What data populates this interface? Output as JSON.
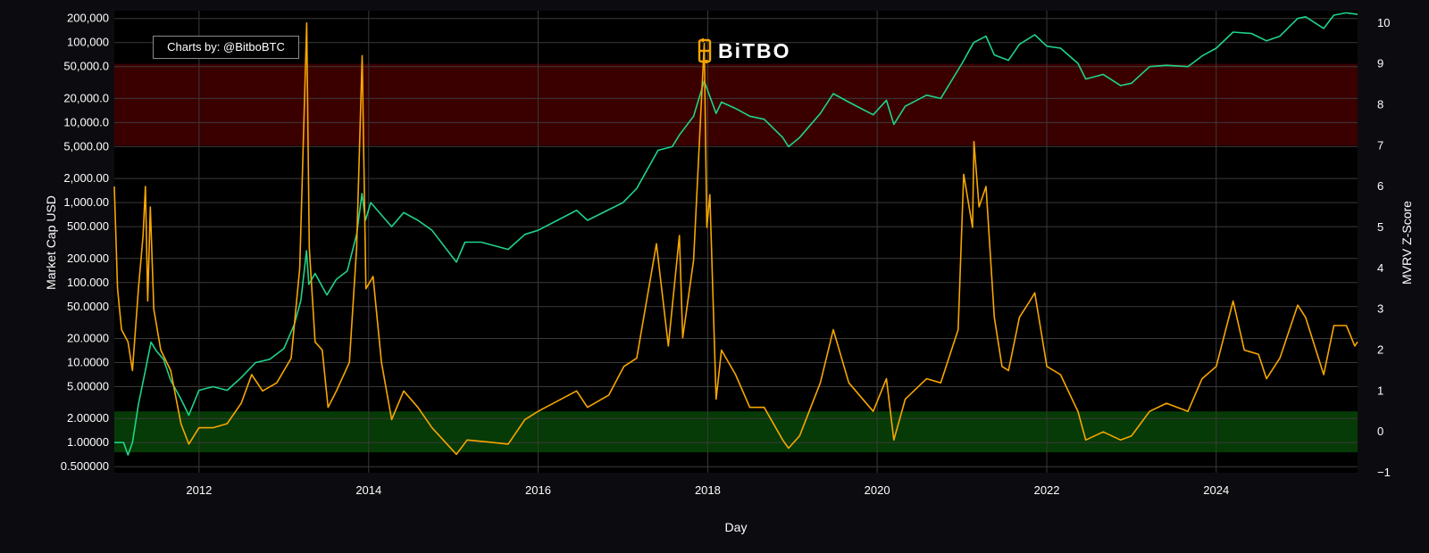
{
  "credit": {
    "label": "Charts by: @BitboBTC"
  },
  "logo": {
    "text": "BiTBO",
    "color": "#f7a600"
  },
  "chart_data": {
    "type": "line",
    "xlabel": "Day",
    "ylabel_left": "Market Cap USD",
    "ylabel_right": "MVRV Z-Score",
    "x_range": [
      "2011-01-01",
      "2025-09-01"
    ],
    "x_ticks": [
      "2012",
      "2014",
      "2016",
      "2018",
      "2020",
      "2022",
      "2024"
    ],
    "y_left": {
      "scale": "log",
      "unit": "billion USD",
      "range": [
        0.42,
        250000
      ],
      "ticks": [
        {
          "v": 200000,
          "label": "200,000"
        },
        {
          "v": 100000,
          "label": "100,000"
        },
        {
          "v": 50000,
          "label": "50,000.0"
        },
        {
          "v": 20000,
          "label": "20,000.0"
        },
        {
          "v": 10000,
          "label": "10,000.0"
        },
        {
          "v": 5000,
          "label": "5,000.00"
        },
        {
          "v": 2000,
          "label": "2,000.00"
        },
        {
          "v": 1000,
          "label": "1,000.00"
        },
        {
          "v": 500,
          "label": "500.000"
        },
        {
          "v": 200,
          "label": "200.000"
        },
        {
          "v": 100,
          "label": "100.000"
        },
        {
          "v": 50,
          "label": "50.0000"
        },
        {
          "v": 20,
          "label": "20.0000"
        },
        {
          "v": 10,
          "label": "10.0000"
        },
        {
          "v": 5,
          "label": "5.00000"
        },
        {
          "v": 2,
          "label": "2.00000"
        },
        {
          "v": 1,
          "label": "1.00000"
        },
        {
          "v": 0.5,
          "label": "0.500000"
        }
      ]
    },
    "y_right": {
      "scale": "linear",
      "range": [
        -1,
        10.3
      ],
      "ticks": [
        {
          "v": 10,
          "label": "10"
        },
        {
          "v": 9,
          "label": "9"
        },
        {
          "v": 8,
          "label": "8"
        },
        {
          "v": 7,
          "label": "7"
        },
        {
          "v": 6,
          "label": "6"
        },
        {
          "v": 5,
          "label": "5"
        },
        {
          "v": 4,
          "label": "4"
        },
        {
          "v": 3,
          "label": "3"
        },
        {
          "v": 2,
          "label": "2"
        },
        {
          "v": 1,
          "label": "1"
        },
        {
          "v": 0,
          "label": "0"
        },
        {
          "v": -1,
          "label": "−1"
        }
      ]
    },
    "bands": [
      {
        "name": "red-zone",
        "axis": "right",
        "from": 7,
        "to": 9,
        "color": "#3a0000"
      },
      {
        "name": "green-zone",
        "axis": "right",
        "from": -0.5,
        "to": 0.5,
        "color": "#063a06"
      }
    ],
    "grid": true,
    "series": [
      {
        "key": "market-cap",
        "axis": "left",
        "color": "#1fd38a",
        "points": [
          [
            "2011-01-01",
            1.0
          ],
          [
            "2011-02-10",
            1.0
          ],
          [
            "2011-03-01",
            0.7
          ],
          [
            "2011-03-20",
            1.0
          ],
          [
            "2011-04-15",
            3.0
          ],
          [
            "2011-05-15",
            8.0
          ],
          [
            "2011-06-08",
            18.0
          ],
          [
            "2011-07-01",
            14.0
          ],
          [
            "2011-08-01",
            11.0
          ],
          [
            "2011-09-01",
            6.0
          ],
          [
            "2011-10-15",
            3.5
          ],
          [
            "2011-11-18",
            2.2
          ],
          [
            "2012-01-01",
            4.5
          ],
          [
            "2012-03-01",
            5.0
          ],
          [
            "2012-05-01",
            4.5
          ],
          [
            "2012-07-01",
            6.5
          ],
          [
            "2012-09-01",
            10.0
          ],
          [
            "2012-11-01",
            11.0
          ],
          [
            "2013-01-01",
            15.0
          ],
          [
            "2013-02-15",
            30.0
          ],
          [
            "2013-03-15",
            60.0
          ],
          [
            "2013-04-08",
            250.0
          ],
          [
            "2013-04-18",
            95.0
          ],
          [
            "2013-05-15",
            130.0
          ],
          [
            "2013-07-05",
            70.0
          ],
          [
            "2013-08-15",
            110.0
          ],
          [
            "2013-10-01",
            140.0
          ],
          [
            "2013-11-10",
            400.0
          ],
          [
            "2013-12-03",
            1300.0
          ],
          [
            "2013-12-18",
            600.0
          ],
          [
            "2014-01-10",
            1000.0
          ],
          [
            "2014-02-25",
            700.0
          ],
          [
            "2014-04-10",
            500.0
          ],
          [
            "2014-06-01",
            750.0
          ],
          [
            "2014-08-01",
            600.0
          ],
          [
            "2014-10-01",
            450.0
          ],
          [
            "2015-01-14",
            180.0
          ],
          [
            "2015-02-20",
            320.0
          ],
          [
            "2015-05-01",
            320.0
          ],
          [
            "2015-08-25",
            260.0
          ],
          [
            "2015-11-05",
            400.0
          ],
          [
            "2016-01-01",
            450.0
          ],
          [
            "2016-06-15",
            800.0
          ],
          [
            "2016-08-01",
            600.0
          ],
          [
            "2017-01-01",
            1000.0
          ],
          [
            "2017-03-01",
            1500.0
          ],
          [
            "2017-06-01",
            4500.0
          ],
          [
            "2017-08-01",
            5000.0
          ],
          [
            "2017-09-01",
            7000.0
          ],
          [
            "2017-11-01",
            12000.0
          ],
          [
            "2017-12-17",
            33000.0
          ],
          [
            "2018-02-06",
            13000.0
          ],
          [
            "2018-03-01",
            18000.0
          ],
          [
            "2018-05-01",
            15000.0
          ],
          [
            "2018-07-01",
            12000.0
          ],
          [
            "2018-09-01",
            11000.0
          ],
          [
            "2018-11-20",
            6500.0
          ],
          [
            "2018-12-15",
            5000.0
          ],
          [
            "2019-02-01",
            6500.0
          ],
          [
            "2019-05-01",
            13000.0
          ],
          [
            "2019-06-26",
            23000.0
          ],
          [
            "2019-09-01",
            18000.0
          ],
          [
            "2019-12-15",
            12500.0
          ],
          [
            "2020-02-10",
            19000.0
          ],
          [
            "2020-03-13",
            9500.0
          ],
          [
            "2020-05-01",
            16000.0
          ],
          [
            "2020-08-01",
            22000.0
          ],
          [
            "2020-10-01",
            20000.0
          ],
          [
            "2021-01-01",
            55000.0
          ],
          [
            "2021-02-20",
            100000.0
          ],
          [
            "2021-04-14",
            120000.0
          ],
          [
            "2021-05-20",
            70000.0
          ],
          [
            "2021-07-20",
            60000.0
          ],
          [
            "2021-09-05",
            95000.0
          ],
          [
            "2021-11-10",
            125000.0
          ],
          [
            "2022-01-01",
            90000.0
          ],
          [
            "2022-03-01",
            85000.0
          ],
          [
            "2022-05-15",
            55000.0
          ],
          [
            "2022-06-18",
            35000.0
          ],
          [
            "2022-09-01",
            40000.0
          ],
          [
            "2022-11-15",
            29000.0
          ],
          [
            "2023-01-01",
            31000.0
          ],
          [
            "2023-03-20",
            50000.0
          ],
          [
            "2023-06-01",
            52000.0
          ],
          [
            "2023-09-01",
            50000.0
          ],
          [
            "2023-11-01",
            68000.0
          ],
          [
            "2024-01-01",
            85000.0
          ],
          [
            "2024-03-14",
            135000.0
          ],
          [
            "2024-06-01",
            130000.0
          ],
          [
            "2024-08-05",
            105000.0
          ],
          [
            "2024-10-01",
            120000.0
          ],
          [
            "2024-12-17",
            200000.0
          ],
          [
            "2025-01-20",
            210000.0
          ],
          [
            "2025-04-08",
            150000.0
          ],
          [
            "2025-05-22",
            220000.0
          ],
          [
            "2025-07-15",
            235000.0
          ],
          [
            "2025-09-01",
            225000.0
          ]
        ]
      },
      {
        "key": "mvrv-z-score",
        "axis": "right",
        "color": "#f7a600",
        "points": [
          [
            "2011-01-01",
            6.0
          ],
          [
            "2011-01-15",
            3.5
          ],
          [
            "2011-02-01",
            2.5
          ],
          [
            "2011-03-01",
            2.2
          ],
          [
            "2011-03-20",
            1.5
          ],
          [
            "2011-04-15",
            3.5
          ],
          [
            "2011-05-05",
            4.8
          ],
          [
            "2011-05-15",
            6.0
          ],
          [
            "2011-05-25",
            3.2
          ],
          [
            "2011-06-05",
            5.5
          ],
          [
            "2011-06-20",
            3.0
          ],
          [
            "2011-07-20",
            2.0
          ],
          [
            "2011-09-01",
            1.5
          ],
          [
            "2011-10-15",
            0.2
          ],
          [
            "2011-11-18",
            -0.3
          ],
          [
            "2012-01-01",
            0.1
          ],
          [
            "2012-03-01",
            0.1
          ],
          [
            "2012-05-01",
            0.2
          ],
          [
            "2012-07-01",
            0.7
          ],
          [
            "2012-08-15",
            1.4
          ],
          [
            "2012-10-01",
            1.0
          ],
          [
            "2012-12-01",
            1.2
          ],
          [
            "2013-02-01",
            1.8
          ],
          [
            "2013-03-10",
            4.0
          ],
          [
            "2013-04-09",
            10.0
          ],
          [
            "2013-04-20",
            4.5
          ],
          [
            "2013-05-15",
            2.2
          ],
          [
            "2013-06-15",
            2.0
          ],
          [
            "2013-07-10",
            0.6
          ],
          [
            "2013-08-15",
            1.0
          ],
          [
            "2013-10-10",
            1.7
          ],
          [
            "2013-11-10",
            4.5
          ],
          [
            "2013-12-04",
            9.2
          ],
          [
            "2013-12-20",
            3.5
          ],
          [
            "2014-01-20",
            3.8
          ],
          [
            "2014-02-25",
            1.7
          ],
          [
            "2014-04-10",
            0.3
          ],
          [
            "2014-06-01",
            1.0
          ],
          [
            "2014-08-01",
            0.6
          ],
          [
            "2014-10-01",
            0.1
          ],
          [
            "2015-01-14",
            -0.55
          ],
          [
            "2015-03-01",
            -0.2
          ],
          [
            "2015-06-01",
            -0.25
          ],
          [
            "2015-08-25",
            -0.3
          ],
          [
            "2015-11-05",
            0.3
          ],
          [
            "2016-01-01",
            0.5
          ],
          [
            "2016-06-15",
            1.0
          ],
          [
            "2016-08-01",
            0.6
          ],
          [
            "2016-11-01",
            0.9
          ],
          [
            "2017-01-05",
            1.6
          ],
          [
            "2017-03-01",
            1.8
          ],
          [
            "2017-05-25",
            4.6
          ],
          [
            "2017-07-15",
            2.1
          ],
          [
            "2017-09-01",
            4.8
          ],
          [
            "2017-09-15",
            2.3
          ],
          [
            "2017-11-01",
            4.2
          ],
          [
            "2017-12-17",
            9.5
          ],
          [
            "2017-12-28",
            5.0
          ],
          [
            "2018-01-10",
            5.8
          ],
          [
            "2018-02-06",
            0.8
          ],
          [
            "2018-03-01",
            2.0
          ],
          [
            "2018-05-01",
            1.4
          ],
          [
            "2018-07-01",
            0.6
          ],
          [
            "2018-09-01",
            0.6
          ],
          [
            "2018-11-20",
            -0.2
          ],
          [
            "2018-12-15",
            -0.4
          ],
          [
            "2019-02-01",
            -0.1
          ],
          [
            "2019-05-01",
            1.2
          ],
          [
            "2019-06-26",
            2.5
          ],
          [
            "2019-09-01",
            1.2
          ],
          [
            "2019-12-15",
            0.5
          ],
          [
            "2020-02-10",
            1.3
          ],
          [
            "2020-03-13",
            -0.2
          ],
          [
            "2020-05-01",
            0.8
          ],
          [
            "2020-08-01",
            1.3
          ],
          [
            "2020-10-01",
            1.2
          ],
          [
            "2020-12-15",
            2.5
          ],
          [
            "2021-01-08",
            6.3
          ],
          [
            "2021-02-15",
            5.0
          ],
          [
            "2021-02-21",
            7.1
          ],
          [
            "2021-03-15",
            5.5
          ],
          [
            "2021-04-14",
            6.0
          ],
          [
            "2021-05-20",
            2.8
          ],
          [
            "2021-06-22",
            1.6
          ],
          [
            "2021-07-20",
            1.5
          ],
          [
            "2021-09-05",
            2.8
          ],
          [
            "2021-10-20",
            3.2
          ],
          [
            "2021-11-10",
            3.4
          ],
          [
            "2022-01-01",
            1.6
          ],
          [
            "2022-03-01",
            1.4
          ],
          [
            "2022-05-15",
            0.5
          ],
          [
            "2022-06-18",
            -0.2
          ],
          [
            "2022-09-01",
            0.0
          ],
          [
            "2022-11-15",
            -0.2
          ],
          [
            "2023-01-01",
            -0.1
          ],
          [
            "2023-03-20",
            0.5
          ],
          [
            "2023-06-01",
            0.7
          ],
          [
            "2023-09-01",
            0.5
          ],
          [
            "2023-11-01",
            1.3
          ],
          [
            "2024-01-01",
            1.6
          ],
          [
            "2024-03-14",
            3.2
          ],
          [
            "2024-05-01",
            2.0
          ],
          [
            "2024-07-01",
            1.9
          ],
          [
            "2024-08-05",
            1.3
          ],
          [
            "2024-10-01",
            1.8
          ],
          [
            "2024-12-17",
            3.1
          ],
          [
            "2025-01-20",
            2.8
          ],
          [
            "2025-04-08",
            1.4
          ],
          [
            "2025-05-22",
            2.6
          ],
          [
            "2025-07-15",
            2.6
          ],
          [
            "2025-08-20",
            2.1
          ],
          [
            "2025-09-01",
            2.2
          ]
        ]
      }
    ]
  }
}
